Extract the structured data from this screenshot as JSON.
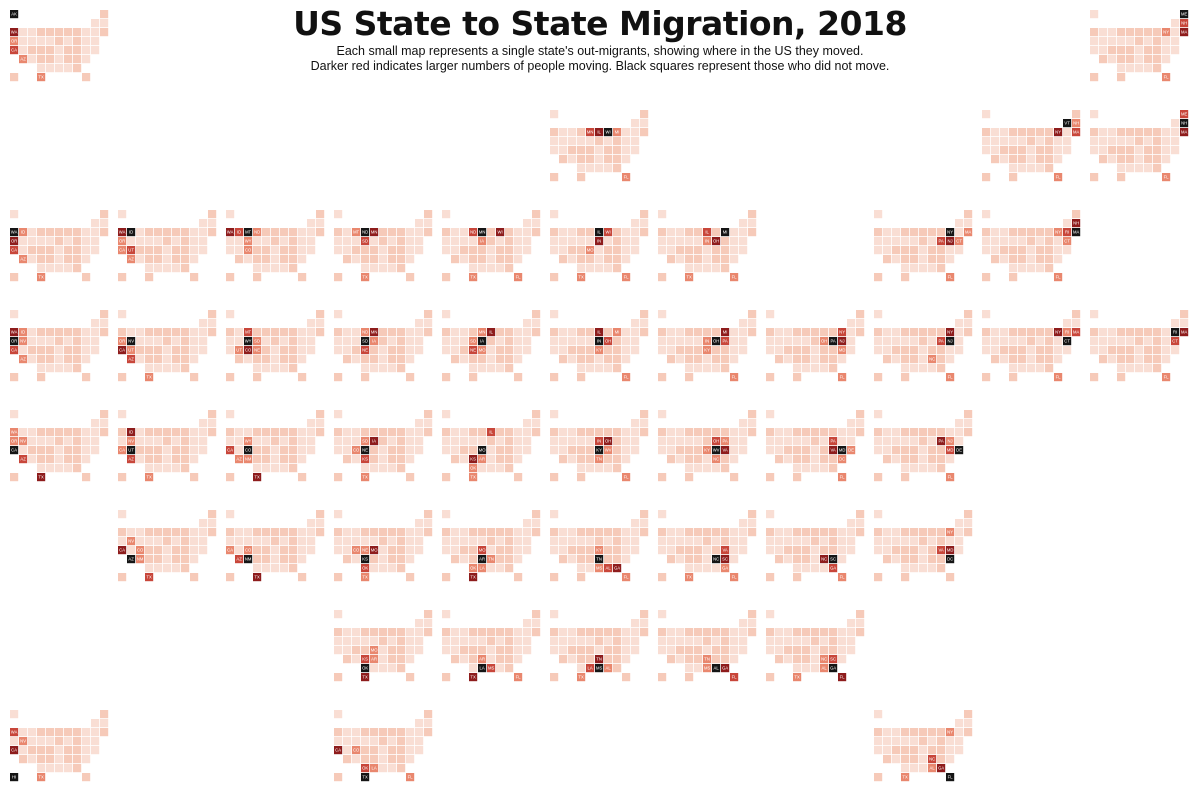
{
  "header": {
    "title": "US State to State Migration, 2018",
    "subtitle_line1": "Each small map represents a single state's out-migrants, showing where in the US they moved.",
    "subtitle_line2": "Darker red indicates larger numbers of people moving. Black squares represent those who did not move."
  },
  "colors": {
    "none": "#f9ded4",
    "low": "#f6cab9",
    "mid": "#e9876e",
    "high": "#c8463a",
    "top": "#8e1c1c",
    "origin": "#151515"
  },
  "chart_data": {
    "type": "heatmap",
    "description_scale": "Darker red indicates larger numbers of people moving. Black squares represent those who did not move.",
    "grid_layout": [
      [
        "AK",
        "",
        "",
        "",
        "",
        "",
        "",
        "",
        "",
        "",
        "ME"
      ],
      [
        "",
        "",
        "",
        "",
        "",
        "",
        "",
        "",
        "",
        "VT",
        "NH"
      ],
      [
        "WA",
        "ID",
        "MT",
        "ND",
        "MN",
        "IL",
        "WI",
        "MI",
        "NY",
        "RI",
        "MA"
      ],
      [
        "OR",
        "NV",
        "WY",
        "SD",
        "IA",
        "IN",
        "OH",
        "PA",
        "NJ",
        "CT",
        ""
      ],
      [
        "CA",
        "UT",
        "CO",
        "NE",
        "MO",
        "KY",
        "WV",
        "VA",
        "MD",
        "DE",
        ""
      ],
      [
        "",
        "AZ",
        "NM",
        "KS",
        "AR",
        "TN",
        "NC",
        "SC",
        "DC",
        "",
        ""
      ],
      [
        "",
        "",
        "",
        "OK",
        "LA",
        "MS",
        "AL",
        "GA",
        "",
        "",
        ""
      ],
      [
        "HI",
        "",
        "",
        "TX",
        "",
        "",
        "",
        "",
        "FL",
        "",
        ""
      ]
    ],
    "panels": [
      {
        "state": "AK",
        "top_destinations": [
          "WA",
          "CA",
          "OR",
          "TX",
          "AZ"
        ]
      },
      {
        "state": "ME",
        "top_destinations": [
          "MA",
          "NH",
          "FL",
          "NY"
        ]
      },
      {
        "state": "WI",
        "top_destinations": [
          "IL",
          "MN",
          "MI",
          "FL"
        ]
      },
      {
        "state": "VT",
        "top_destinations": [
          "NY",
          "MA",
          "NH",
          "FL"
        ]
      },
      {
        "state": "NH",
        "top_destinations": [
          "MA",
          "ME",
          "FL"
        ]
      },
      {
        "state": "WA",
        "top_destinations": [
          "OR",
          "CA",
          "ID",
          "TX",
          "AZ"
        ]
      },
      {
        "state": "ID",
        "top_destinations": [
          "WA",
          "UT",
          "OR",
          "CA",
          "AZ"
        ]
      },
      {
        "state": "MT",
        "top_destinations": [
          "WA",
          "ID",
          "WY",
          "CO",
          "ND"
        ]
      },
      {
        "state": "ND",
        "top_destinations": [
          "MN",
          "SD",
          "MT",
          "TX"
        ]
      },
      {
        "state": "MN",
        "top_destinations": [
          "WI",
          "ND",
          "IA",
          "FL",
          "TX"
        ]
      },
      {
        "state": "IL",
        "top_destinations": [
          "IN",
          "WI",
          "MO",
          "FL",
          "TX"
        ]
      },
      {
        "state": "MI",
        "top_destinations": [
          "OH",
          "IL",
          "FL",
          "IN",
          "TX"
        ]
      },
      {
        "state": "NY",
        "top_destinations": [
          "NJ",
          "PA",
          "FL",
          "CT",
          "MA"
        ]
      },
      {
        "state": "MA",
        "top_destinations": [
          "NH",
          "RI",
          "NY",
          "FL",
          "CT"
        ]
      },
      {
        "state": "OR",
        "top_destinations": [
          "WA",
          "CA",
          "ID",
          "AZ",
          "NV"
        ]
      },
      {
        "state": "NV",
        "top_destinations": [
          "CA",
          "AZ",
          "UT",
          "TX",
          "OR"
        ]
      },
      {
        "state": "WY",
        "top_destinations": [
          "CO",
          "MT",
          "SD",
          "UT",
          "NE"
        ]
      },
      {
        "state": "SD",
        "top_destinations": [
          "MN",
          "NE",
          "ND",
          "IA"
        ]
      },
      {
        "state": "IA",
        "top_destinations": [
          "IL",
          "NE",
          "MN",
          "MO",
          "SD"
        ]
      },
      {
        "state": "IN",
        "top_destinations": [
          "IL",
          "OH",
          "KY",
          "MI",
          "FL"
        ]
      },
      {
        "state": "OH",
        "top_destinations": [
          "MI",
          "PA",
          "KY",
          "IN",
          "FL"
        ]
      },
      {
        "state": "PA",
        "top_destinations": [
          "NJ",
          "NY",
          "MD",
          "OH",
          "FL"
        ]
      },
      {
        "state": "NJ",
        "top_destinations": [
          "NY",
          "PA",
          "FL",
          "NC"
        ]
      },
      {
        "state": "CT",
        "top_destinations": [
          "NY",
          "MA",
          "FL",
          "RI"
        ]
      },
      {
        "state": "RI",
        "top_destinations": [
          "MA",
          "CT",
          "FL"
        ]
      },
      {
        "state": "CA",
        "top_destinations": [
          "TX",
          "AZ",
          "NV",
          "OR",
          "WA"
        ]
      },
      {
        "state": "UT",
        "top_destinations": [
          "ID",
          "AZ",
          "CA",
          "NV",
          "TX"
        ]
      },
      {
        "state": "CO",
        "top_destinations": [
          "TX",
          "CA",
          "AZ",
          "WY",
          "NM"
        ]
      },
      {
        "state": "NE",
        "top_destinations": [
          "IA",
          "KS",
          "CO",
          "SD",
          "TX"
        ]
      },
      {
        "state": "MO",
        "top_destinations": [
          "KS",
          "IL",
          "AR",
          "TX",
          "OK"
        ]
      },
      {
        "state": "KY",
        "top_destinations": [
          "OH",
          "IN",
          "TN",
          "WV",
          "FL"
        ]
      },
      {
        "state": "WV",
        "top_destinations": [
          "VA",
          "OH",
          "PA",
          "KY",
          "NC"
        ]
      },
      {
        "state": "MD",
        "top_destinations": [
          "VA",
          "PA",
          "DC",
          "DE",
          "FL"
        ]
      },
      {
        "state": "DE",
        "top_destinations": [
          "PA",
          "MD",
          "NJ",
          "FL"
        ]
      },
      {
        "state": "AZ",
        "top_destinations": [
          "CA",
          "TX",
          "NV",
          "CO",
          "NM"
        ]
      },
      {
        "state": "NM",
        "top_destinations": [
          "TX",
          "AZ",
          "CO",
          "CA"
        ]
      },
      {
        "state": "KS",
        "top_destinations": [
          "MO",
          "OK",
          "TX",
          "CO",
          "NE"
        ]
      },
      {
        "state": "AR",
        "top_destinations": [
          "TX",
          "MO",
          "OK",
          "TN",
          "LA"
        ]
      },
      {
        "state": "TN",
        "top_destinations": [
          "GA",
          "AL",
          "KY",
          "MS",
          "FL"
        ]
      },
      {
        "state": "NC",
        "top_destinations": [
          "SC",
          "VA",
          "GA",
          "FL",
          "TX"
        ]
      },
      {
        "state": "SC",
        "top_destinations": [
          "NC",
          "GA",
          "FL"
        ]
      },
      {
        "state": "DC",
        "top_destinations": [
          "MD",
          "VA",
          "NY"
        ]
      },
      {
        "state": "OK",
        "top_destinations": [
          "TX",
          "KS",
          "AR",
          "MO"
        ]
      },
      {
        "state": "LA",
        "top_destinations": [
          "TX",
          "MS",
          "AR",
          "FL"
        ]
      },
      {
        "state": "MS",
        "top_destinations": [
          "TN",
          "LA",
          "AL",
          "TX"
        ]
      },
      {
        "state": "AL",
        "top_destinations": [
          "GA",
          "FL",
          "TN",
          "MS"
        ]
      },
      {
        "state": "GA",
        "top_destinations": [
          "FL",
          "SC",
          "NC",
          "AL",
          "TX"
        ]
      },
      {
        "state": "HI",
        "top_destinations": [
          "CA",
          "WA",
          "TX",
          "NV"
        ]
      },
      {
        "state": "TX",
        "top_destinations": [
          "CA",
          "OK",
          "CO",
          "LA",
          "FL"
        ]
      },
      {
        "state": "FL",
        "top_destinations": [
          "GA",
          "NC",
          "TX",
          "AL",
          "NY"
        ]
      }
    ]
  }
}
